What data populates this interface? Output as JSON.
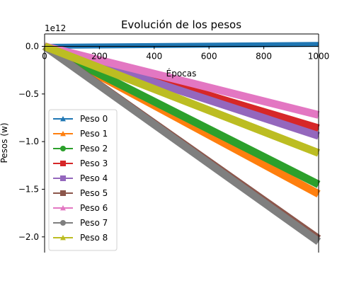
{
  "chart_data": {
    "type": "line",
    "title": "Evolución de los pesos",
    "xlabel": "Épocas",
    "ylabel": "Pesos (w)",
    "offset_text": "1e12",
    "xlim": [
      0,
      1000
    ],
    "ylim": [
      -2.15,
      0.13
    ],
    "x_ticks": [
      0,
      200,
      400,
      600,
      800,
      1000
    ],
    "x_tick_labels": [
      "0",
      "200",
      "400",
      "600",
      "800",
      "1000"
    ],
    "y_ticks": [
      0.0,
      -0.5,
      -1.0,
      -1.5,
      -2.0
    ],
    "y_tick_labels": [
      "0.0",
      "−0.5",
      "−1.0",
      "−1.5",
      "−2.0"
    ],
    "grid": false,
    "legend_position": "lower-left",
    "x": [
      0,
      1000
    ],
    "series": [
      {
        "name": "Peso 0",
        "color": "#1f77b4",
        "marker": "triangle-up",
        "values": [
          0.0,
          0.02
        ]
      },
      {
        "name": "Peso 1",
        "color": "#ff7f0e",
        "marker": "triangle-up",
        "values": [
          0.0,
          -1.55
        ]
      },
      {
        "name": "Peso 2",
        "color": "#2ca02c",
        "marker": "circle",
        "values": [
          0.0,
          -1.45
        ]
      },
      {
        "name": "Peso 3",
        "color": "#d62728",
        "marker": "square",
        "values": [
          0.0,
          -0.86
        ]
      },
      {
        "name": "Peso 4",
        "color": "#9467bd",
        "marker": "square",
        "values": [
          0.0,
          -0.94
        ]
      },
      {
        "name": "Peso 5",
        "color": "#8c564b",
        "marker": "square",
        "values": [
          0.0,
          -2.02
        ]
      },
      {
        "name": "Peso 6",
        "color": "#e377c2",
        "marker": "triangle-up",
        "values": [
          0.0,
          -0.72
        ]
      },
      {
        "name": "Peso 7",
        "color": "#7f7f7f",
        "marker": "circle",
        "values": [
          0.0,
          -2.05
        ]
      },
      {
        "name": "Peso 8",
        "color": "#bcbd22",
        "marker": "triangle-up",
        "values": [
          0.0,
          -1.12
        ]
      }
    ]
  }
}
